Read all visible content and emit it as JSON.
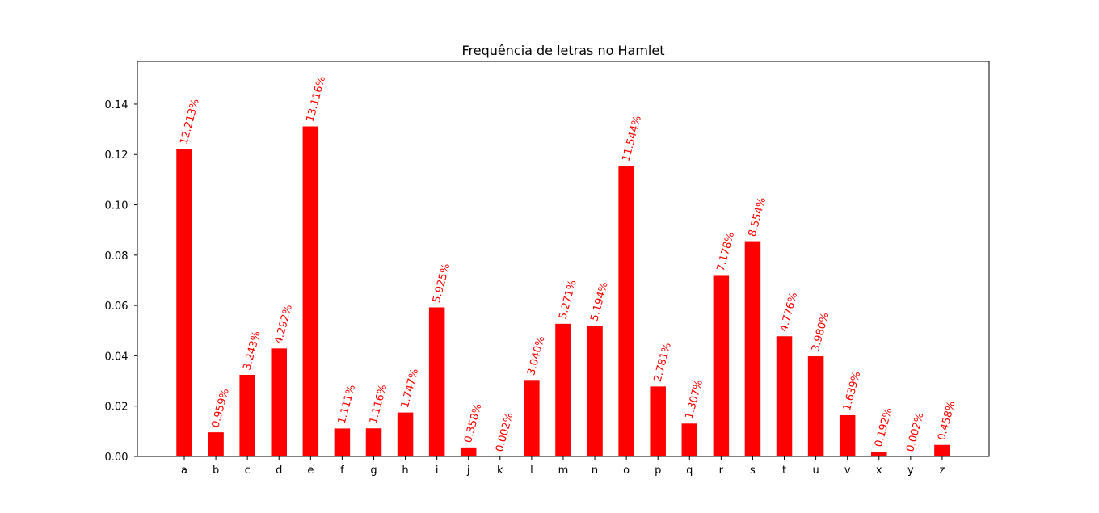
{
  "chart_data": {
    "type": "bar",
    "title": "Frequência de letras no Hamlet",
    "xlabel": "",
    "ylabel": "",
    "categories": [
      "a",
      "b",
      "c",
      "d",
      "e",
      "f",
      "g",
      "h",
      "i",
      "j",
      "k",
      "l",
      "m",
      "n",
      "o",
      "p",
      "q",
      "r",
      "s",
      "t",
      "u",
      "v",
      "x",
      "y",
      "z"
    ],
    "values": [
      0.12213,
      0.00959,
      0.03243,
      0.04292,
      0.13116,
      0.01111,
      0.01116,
      0.01747,
      0.05925,
      0.00358,
      2e-05,
      0.0304,
      0.05271,
      0.05194,
      0.11544,
      0.02781,
      0.01307,
      0.07178,
      0.08554,
      0.04776,
      0.0398,
      0.01639,
      0.00192,
      2e-05,
      0.00458
    ],
    "data_labels": [
      "12.213%",
      "0.959%",
      "3.243%",
      "4.292%",
      "13.116%",
      "1.111%",
      "1.116%",
      "1.747%",
      "5.925%",
      "0.358%",
      "0.002%",
      "3.040%",
      "5.271%",
      "5.194%",
      "11.544%",
      "2.781%",
      "1.307%",
      "7.178%",
      "8.554%",
      "4.776%",
      "3.980%",
      "1.639%",
      "0.192%",
      "0.002%",
      "0.458%"
    ],
    "ylim": [
      0,
      0.157
    ],
    "yticks": [
      "0.00",
      "0.02",
      "0.04",
      "0.06",
      "0.08",
      "0.10",
      "0.12",
      "0.14"
    ],
    "grid": false,
    "bar_color": "#ff0000",
    "label_color": "#ff0000"
  }
}
